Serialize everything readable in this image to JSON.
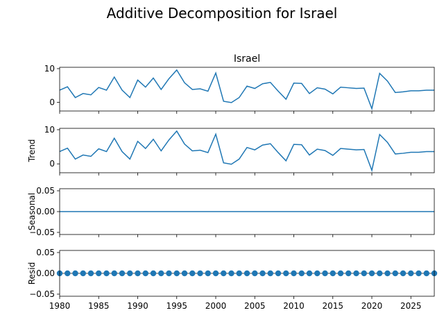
{
  "suptitle": "Additive Decomposition for Israel",
  "colors": {
    "line": "#1f77b4",
    "axis": "#000000"
  },
  "chart_data": [
    {
      "type": "line",
      "title": "Israel",
      "ylabel": "",
      "xlim": [
        1980,
        2028
      ],
      "ylim": [
        -2.6,
        10.4
      ],
      "yticks": [
        0,
        10
      ],
      "x": [
        1980,
        1981,
        1982,
        1983,
        1984,
        1985,
        1986,
        1987,
        1988,
        1989,
        1990,
        1991,
        1992,
        1993,
        1994,
        1995,
        1996,
        1997,
        1998,
        1999,
        2000,
        2001,
        2002,
        2003,
        2004,
        2005,
        2006,
        2007,
        2008,
        2009,
        2010,
        2011,
        2012,
        2013,
        2014,
        2015,
        2016,
        2017,
        2018,
        2019,
        2020,
        2021,
        2022,
        2023,
        2024,
        2025,
        2026,
        2027,
        2028
      ],
      "values": [
        3.6,
        4.6,
        1.4,
        2.6,
        2.2,
        4.4,
        3.6,
        7.5,
        3.6,
        1.4,
        6.6,
        4.5,
        7.2,
        3.8,
        7.0,
        9.6,
        5.8,
        3.8,
        4.0,
        3.3,
        8.7,
        0.3,
        -0.1,
        1.4,
        4.8,
        4.1,
        5.5,
        5.9,
        3.3,
        0.9,
        5.7,
        5.6,
        2.6,
        4.3,
        3.9,
        2.5,
        4.5,
        4.3,
        4.1,
        4.2,
        -1.9,
        8.6,
        6.3,
        2.9,
        3.1,
        3.4,
        3.4,
        3.6,
        3.6
      ]
    },
    {
      "type": "line",
      "title": "",
      "ylabel": "Trend",
      "xlim": [
        1980,
        2028
      ],
      "ylim": [
        -2.6,
        10.4
      ],
      "yticks": [
        0,
        10
      ],
      "x": [
        1980,
        1981,
        1982,
        1983,
        1984,
        1985,
        1986,
        1987,
        1988,
        1989,
        1990,
        1991,
        1992,
        1993,
        1994,
        1995,
        1996,
        1997,
        1998,
        1999,
        2000,
        2001,
        2002,
        2003,
        2004,
        2005,
        2006,
        2007,
        2008,
        2009,
        2010,
        2011,
        2012,
        2013,
        2014,
        2015,
        2016,
        2017,
        2018,
        2019,
        2020,
        2021,
        2022,
        2023,
        2024,
        2025,
        2026,
        2027,
        2028
      ],
      "values": [
        3.6,
        4.6,
        1.4,
        2.6,
        2.2,
        4.4,
        3.6,
        7.5,
        3.6,
        1.4,
        6.6,
        4.5,
        7.2,
        3.8,
        7.0,
        9.6,
        5.8,
        3.8,
        4.0,
        3.3,
        8.7,
        0.3,
        -0.1,
        1.4,
        4.8,
        4.1,
        5.5,
        5.9,
        3.3,
        0.9,
        5.7,
        5.6,
        2.6,
        4.3,
        3.9,
        2.5,
        4.5,
        4.3,
        4.1,
        4.2,
        -1.9,
        8.6,
        6.3,
        2.9,
        3.1,
        3.4,
        3.4,
        3.6,
        3.6
      ]
    },
    {
      "type": "line",
      "title": "",
      "ylabel": "Seasonal",
      "xlim": [
        1980,
        2028
      ],
      "ylim": [
        -0.055,
        0.055
      ],
      "yticks": [
        -0.05,
        0.0,
        0.05
      ],
      "ytick_labels": [
        "−0.05",
        "0.00",
        "0.05"
      ],
      "x": [
        1980,
        2028
      ],
      "values": [
        0,
        0
      ]
    },
    {
      "type": "scatter",
      "title": "",
      "ylabel": "Resid",
      "xlim": [
        1980,
        2028
      ],
      "ylim": [
        -0.055,
        0.055
      ],
      "yticks": [
        -0.05,
        0.0,
        0.05
      ],
      "ytick_labels": [
        "−0.05",
        "0.00",
        "0.05"
      ],
      "x": [
        1980,
        1981,
        1982,
        1983,
        1984,
        1985,
        1986,
        1987,
        1988,
        1989,
        1990,
        1991,
        1992,
        1993,
        1994,
        1995,
        1996,
        1997,
        1998,
        1999,
        2000,
        2001,
        2002,
        2003,
        2004,
        2005,
        2006,
        2007,
        2008,
        2009,
        2010,
        2011,
        2012,
        2013,
        2014,
        2015,
        2016,
        2017,
        2018,
        2019,
        2020,
        2021,
        2022,
        2023,
        2024,
        2025,
        2026,
        2027,
        2028
      ],
      "values": [
        0,
        0,
        0,
        0,
        0,
        0,
        0,
        0,
        0,
        0,
        0,
        0,
        0,
        0,
        0,
        0,
        0,
        0,
        0,
        0,
        0,
        0,
        0,
        0,
        0,
        0,
        0,
        0,
        0,
        0,
        0,
        0,
        0,
        0,
        0,
        0,
        0,
        0,
        0,
        0,
        0,
        0,
        0,
        0,
        0,
        0,
        0,
        0,
        0
      ],
      "xticks": [
        1980,
        1985,
        1990,
        1995,
        2000,
        2005,
        2010,
        2015,
        2020,
        2025
      ]
    }
  ]
}
